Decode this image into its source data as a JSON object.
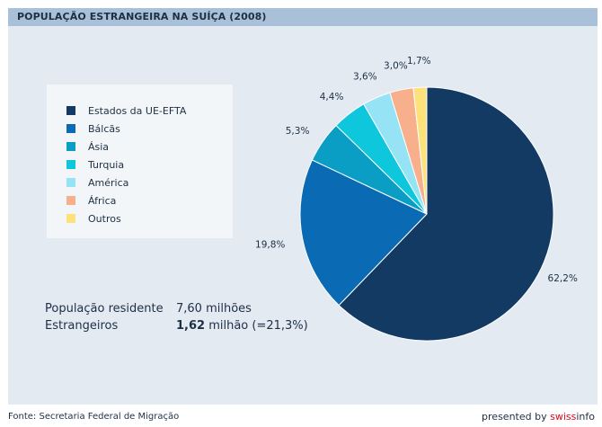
{
  "header": {
    "title": "POPULAÇÃO ESTRANGEIRA NA SUÍÇA (2008)"
  },
  "chart_data": {
    "type": "pie",
    "title": "POPULAÇÃO ESTRANGEIRA NA SUÍÇA (2008)",
    "categories": [
      "Estados da UE-EFTA",
      "Bálcãs",
      "Ásia",
      "Turquia",
      "América",
      "África",
      "Outros"
    ],
    "values": [
      62.2,
      19.8,
      5.3,
      4.4,
      3.6,
      3.0,
      1.7
    ],
    "labels": [
      "62,2%",
      "19,8%",
      "5,3%",
      "4,4%",
      "3,6%",
      "3,0%",
      "1,7%"
    ],
    "colors": [
      "#133a63",
      "#0a6ab3",
      "#0a9ec4",
      "#0fc7dc",
      "#96e3f6",
      "#f8b08c",
      "#fde27c"
    ],
    "legend_position": "left"
  },
  "stats": {
    "resident_label": "População residente",
    "resident_value": "7,60 milhões",
    "foreign_label": "Estrangeiros",
    "foreign_value_bold": "1,62",
    "foreign_value_rest": " milhão (=21,3%)"
  },
  "footer": {
    "source": "Fonte: Secretaria Federal de Migração",
    "presented_prefix": "presented by ",
    "brand_accent": "swiss",
    "brand_rest": "info"
  }
}
